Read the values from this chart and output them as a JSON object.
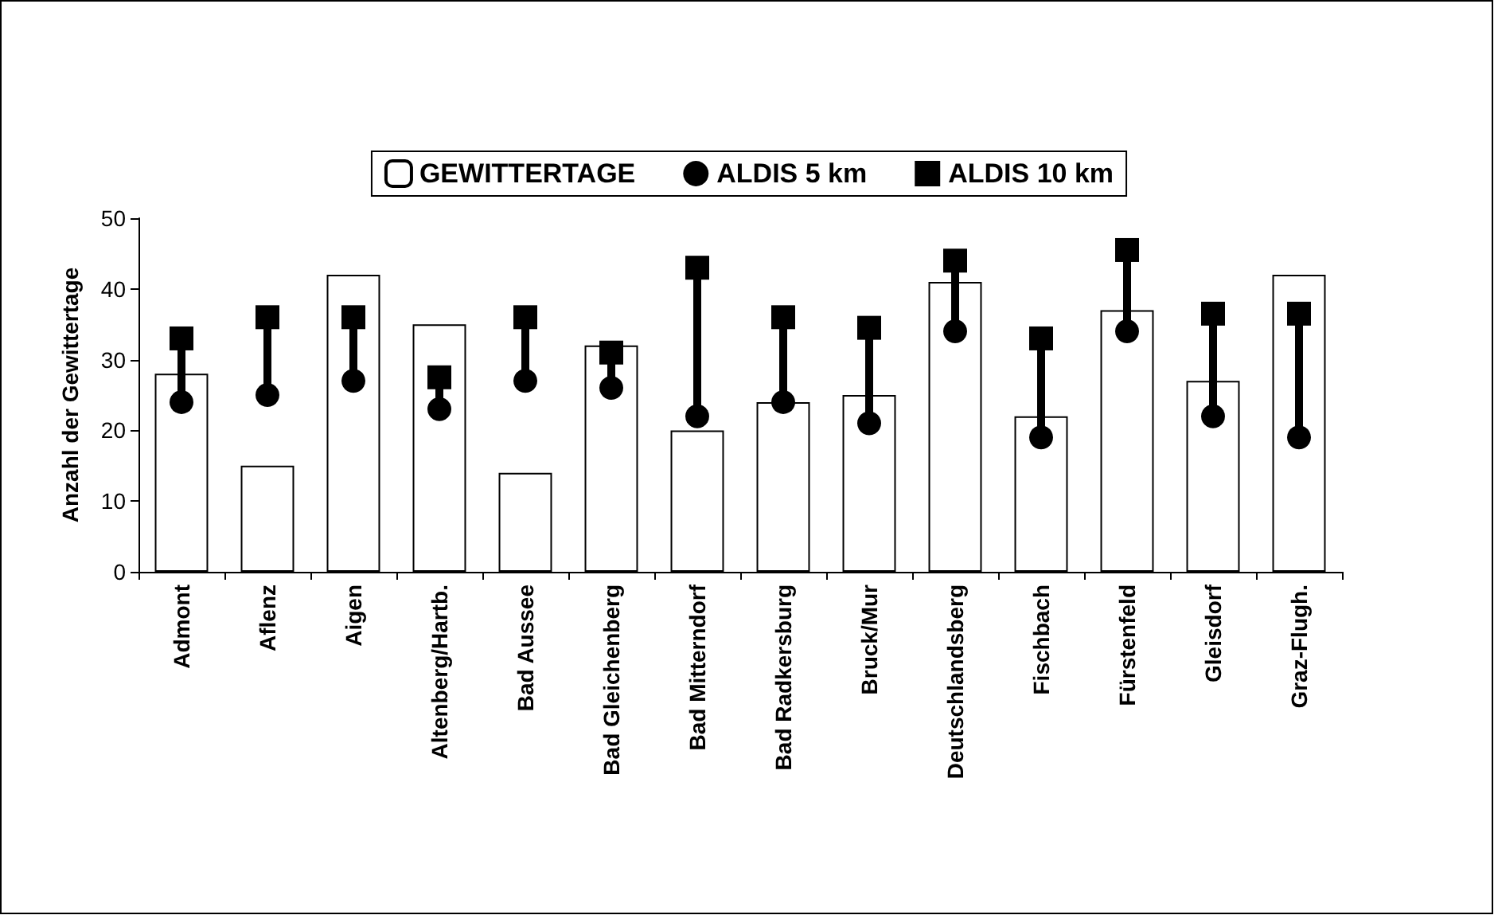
{
  "chart_data": {
    "type": "bar",
    "ylabel": "Anzahl der Gewittertage",
    "categories": [
      "Admont",
      "Aflenz",
      "Aigen",
      "Altenberg/Hartb.",
      "Bad Aussee",
      "Bad Gleichenberg",
      "Bad Mitterndorf",
      "Bad Radkersburg",
      "Bruck/Mur",
      "Deutschlandsberg",
      "Fischbach",
      "Fürstenfeld",
      "Gleisdorf",
      "Graz-Flugh."
    ],
    "series": [
      {
        "name": "GEWITTERTAGE",
        "color": "#ffffff",
        "values": [
          28,
          15,
          42,
          35,
          14,
          32,
          20,
          24,
          25,
          41,
          22,
          37,
          27,
          42
        ]
      },
      {
        "name": "ALDIS 5 km",
        "type": "scatter",
        "marker": "circle",
        "color": "#000000",
        "values": [
          24,
          25,
          27,
          23,
          27,
          26,
          22,
          24,
          21,
          34,
          19,
          34,
          22,
          19
        ]
      },
      {
        "name": "ALDIS 10 km",
        "type": "scatter",
        "marker": "square",
        "color": "#000000",
        "values": [
          33,
          36,
          36,
          27.5,
          36,
          31,
          43,
          36,
          34.5,
          44,
          33,
          45.5,
          36.5,
          36.5
        ]
      }
    ],
    "ylim": [
      0,
      50
    ],
    "yticks": [
      0,
      10,
      20,
      30,
      40,
      50
    ],
    "grid": false,
    "legend": "top"
  }
}
